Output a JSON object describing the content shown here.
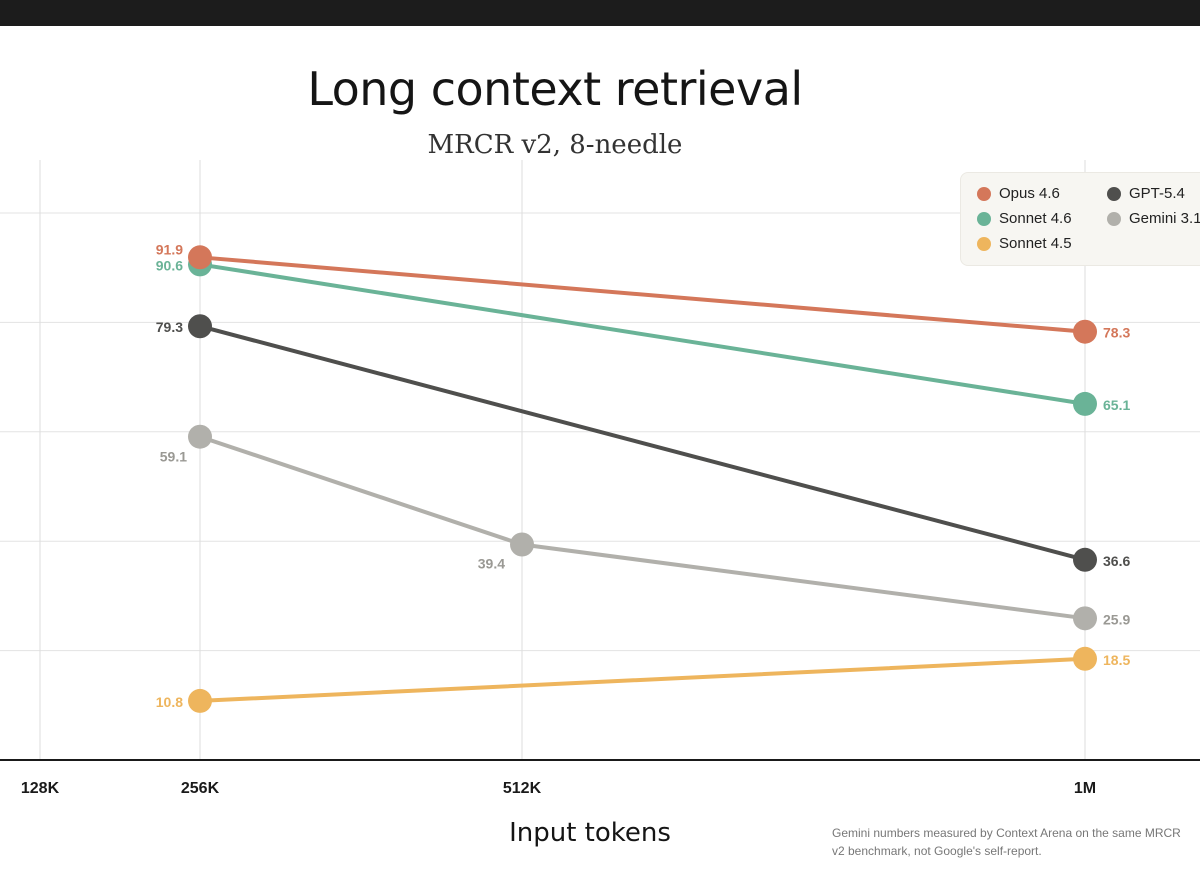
{
  "chart_data": {
    "type": "line",
    "title": "Long context retrieval",
    "subtitle": "MRCR v2, 8-needle",
    "xlabel": "Input tokens",
    "ylabel": "",
    "categories": [
      "128K",
      "256K",
      "512K",
      "1M"
    ],
    "ylim": [
      0,
      100
    ],
    "grid": true,
    "legend_position": "top-right",
    "series": [
      {
        "name": "Opus 4.6",
        "color": "#d4775a",
        "points": [
          {
            "x": "256K",
            "y": 91.9,
            "label": "91.9"
          },
          {
            "x": "1M",
            "y": 78.3,
            "label": "78.3"
          }
        ]
      },
      {
        "name": "Sonnet 4.6",
        "color": "#6ab397",
        "points": [
          {
            "x": "256K",
            "y": 90.6,
            "label": "90.6"
          },
          {
            "x": "1M",
            "y": 65.1,
            "label": "65.1"
          }
        ]
      },
      {
        "name": "Sonnet 4.5",
        "color": "#eeb55d",
        "points": [
          {
            "x": "256K",
            "y": 10.8,
            "label": "10.8"
          },
          {
            "x": "1M",
            "y": 18.5,
            "label": "18.5"
          }
        ]
      },
      {
        "name": "GPT-5.4",
        "color": "#4f4f4d",
        "points": [
          {
            "x": "256K",
            "y": 79.3,
            "label": "79.3"
          },
          {
            "x": "1M",
            "y": 36.6,
            "label": "36.6"
          }
        ]
      },
      {
        "name": "Gemini 3.1",
        "color": "#b1b0ab",
        "points": [
          {
            "x": "256K",
            "y": 59.1,
            "label": "59.1"
          },
          {
            "x": "512K",
            "y": 39.4,
            "label": "39.4"
          },
          {
            "x": "1M",
            "y": 25.9,
            "label": "25.9"
          }
        ]
      }
    ],
    "footnote_line1": "Gemini numbers measured by Context Arena on the same MRCR",
    "footnote_line2": "v2 benchmark, not Google's self-report."
  }
}
